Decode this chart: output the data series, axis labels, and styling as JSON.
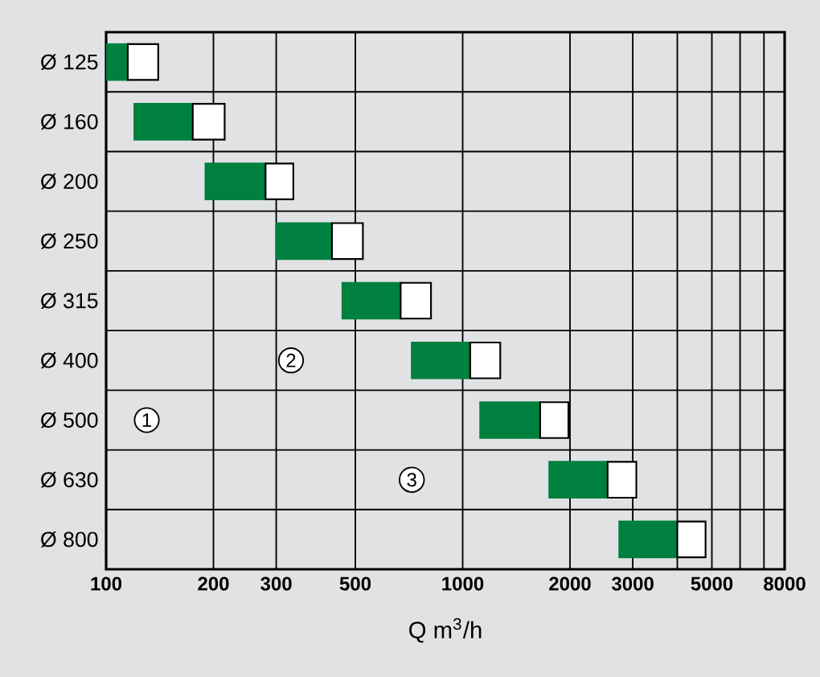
{
  "chart_data": {
    "type": "bar",
    "orientation": "horizontal",
    "categories": [
      "Ø 125",
      "Ø 160",
      "Ø 200",
      "Ø 250",
      "Ø 315",
      "Ø 400",
      "Ø 500",
      "Ø 630",
      "Ø 800"
    ],
    "series": [
      {
        "color": "#00803f",
        "base": [
          100,
          120,
          190,
          300,
          460,
          720,
          1120,
          1750,
          2750
        ],
        "values": [
          15,
          55,
          90,
          130,
          210,
          330,
          530,
          800,
          1250
        ]
      },
      {
        "color": "#ffffff",
        "base": [
          115,
          175,
          280,
          430,
          670,
          1050,
          1650,
          2550,
          4000
        ],
        "values": [
          25,
          40,
          55,
          95,
          145,
          225,
          330,
          520,
          800
        ]
      }
    ],
    "xlim": [
      100,
      8000
    ],
    "xticks": [
      100,
      200,
      300,
      500,
      1000,
      2000,
      3000,
      {
        "value": 4000,
        "label": null
      },
      5000,
      {
        "value": 6000,
        "label": null
      },
      {
        "value": 7000,
        "label": null
      },
      8000
    ],
    "log": "x",
    "grid": true,
    "xlabel": "Q m$^{3}$/h",
    "annotations": [
      {
        "text": "1",
        "x": 130,
        "y": "Ø 500"
      },
      {
        "text": "2",
        "x": 330,
        "y": "Ø 400"
      },
      {
        "text": "3",
        "x": 720,
        "y": "Ø 630"
      }
    ]
  }
}
